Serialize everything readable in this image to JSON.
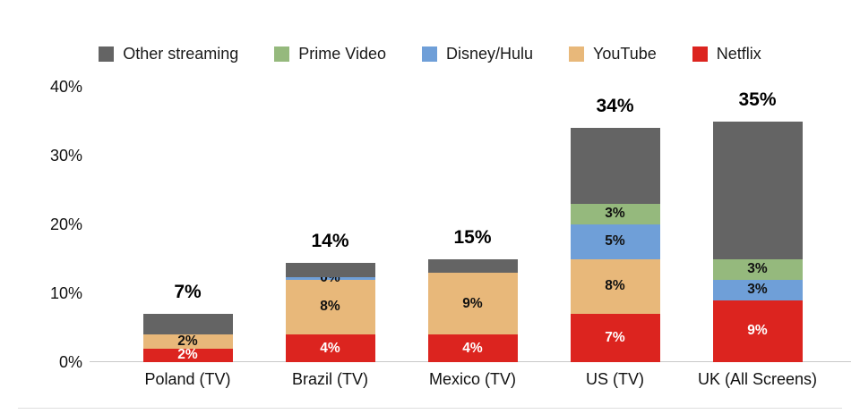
{
  "chart_data": {
    "type": "bar",
    "stacked": true,
    "title": "",
    "categories": [
      "Poland (TV)",
      "Brazil (TV)",
      "Mexico (TV)",
      "US (TV)",
      "UK (All Screens)"
    ],
    "series": [
      {
        "name": "Netflix",
        "color": "#dc241f",
        "label_color": "#ffffff",
        "values": [
          2,
          4,
          4,
          7,
          9
        ],
        "labels": [
          "2%",
          "4%",
          "4%",
          "7%",
          "9%"
        ]
      },
      {
        "name": "YouTube",
        "color": "#e8b87a",
        "label_color": "#111111",
        "values": [
          2,
          8,
          9,
          8,
          0
        ],
        "labels": [
          "2%",
          "8%",
          "9%",
          "8%",
          ""
        ]
      },
      {
        "name": "Disney/Hulu",
        "color": "#6f9fd8",
        "label_color": "#111111",
        "values": [
          0,
          0,
          0,
          5,
          3
        ],
        "labels": [
          "",
          "0%",
          "",
          "5%",
          "3%"
        ]
      },
      {
        "name": "Prime Video",
        "color": "#95b97d",
        "label_color": "#111111",
        "values": [
          0,
          0,
          0,
          3,
          3
        ],
        "labels": [
          "",
          "",
          "",
          "3%",
          "3%"
        ]
      },
      {
        "name": "Other streaming",
        "color": "#646464",
        "label_color": "#ffffff",
        "values": [
          3,
          2,
          2,
          11,
          20
        ],
        "labels": [
          "",
          "",
          "",
          "",
          ""
        ]
      }
    ],
    "totals": [
      "7%",
      "14%",
      "15%",
      "34%",
      "35%"
    ],
    "y_axis": {
      "ticks": [
        "40%",
        "30%",
        "20%",
        "10%",
        "0%"
      ],
      "min": 0,
      "max": 40
    },
    "xlabel": "",
    "ylabel": "",
    "grid": false,
    "legend": {
      "position": "top",
      "order": [
        "Other streaming",
        "Prime Video",
        "Disney/Hulu",
        "YouTube",
        "Netflix"
      ]
    }
  }
}
